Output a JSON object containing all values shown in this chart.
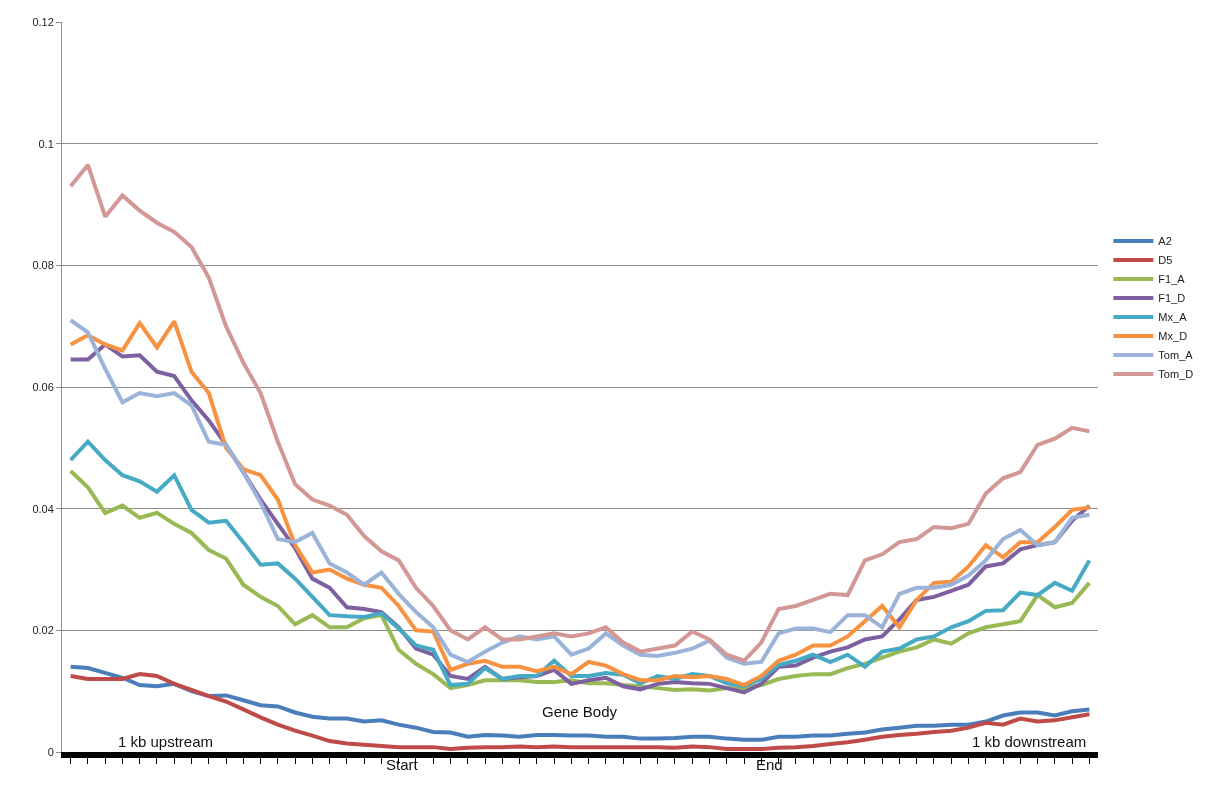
{
  "chart_data": {
    "type": "line",
    "categories": [
      null,
      null,
      null,
      null,
      null,
      null,
      null,
      null,
      null,
      null,
      null,
      null,
      null,
      null,
      null,
      null,
      null,
      null,
      null,
      null,
      null,
      null,
      null,
      null,
      null,
      null,
      null,
      null,
      null,
      null,
      null,
      null,
      null,
      null,
      null,
      null,
      null,
      null,
      null,
      null,
      null,
      null,
      null,
      null,
      null,
      null,
      null,
      null,
      null,
      null,
      null,
      null,
      null,
      null,
      null,
      null,
      null,
      null,
      null,
      null
    ],
    "ylim": [
      0,
      0.12
    ],
    "yticks": [
      0,
      0.02,
      0.04,
      0.06,
      0.08,
      0.1,
      0.12
    ],
    "grid": "y",
    "legend": "right",
    "tick_labels": "y",
    "annotations": [
      "1 kb upstream",
      "Start",
      "Gene Body",
      "End",
      "1 kb downstream"
    ],
    "series": [
      {
        "name": "A2",
        "color": "#4a7ebb",
        "values": [
          0.014,
          0.0138,
          0.013,
          0.0122,
          0.011,
          0.0108,
          0.0112,
          0.01,
          0.0092,
          0.0093,
          0.0085,
          0.0077,
          0.0075,
          0.0065,
          0.0058,
          0.0055,
          0.0055,
          0.005,
          0.0052,
          0.0045,
          0.004,
          0.0033,
          0.0032,
          0.0025,
          0.0028,
          0.0027,
          0.0025,
          0.0028,
          0.0028,
          0.0027,
          0.0027,
          0.0025,
          0.0025,
          0.0022,
          0.0022,
          0.0023,
          0.0025,
          0.0025,
          0.0022,
          0.002,
          0.002,
          0.0025,
          0.0025,
          0.0027,
          0.0027,
          0.003,
          0.0032,
          0.0037,
          0.004,
          0.0043,
          0.0043,
          0.0045,
          0.0045,
          0.005,
          0.006,
          0.0065,
          0.0065,
          0.006,
          0.0067,
          0.007
        ]
      },
      {
        "name": "D5",
        "color": "#be4b48",
        "values": [
          0.0125,
          0.012,
          0.012,
          0.012,
          0.0128,
          0.0125,
          0.0112,
          0.0102,
          0.0092,
          0.0083,
          0.007,
          0.0057,
          0.0045,
          0.0035,
          0.0027,
          0.0018,
          0.0014,
          0.0012,
          0.001,
          0.0008,
          0.0008,
          0.0008,
          0.0005,
          0.0007,
          0.0008,
          0.0008,
          0.0009,
          0.0008,
          0.0009,
          0.0008,
          0.0008,
          0.0008,
          0.0008,
          0.0008,
          0.0008,
          0.0007,
          0.0009,
          0.0008,
          0.0005,
          0.0005,
          0.0005,
          0.0007,
          0.0008,
          0.001,
          0.0013,
          0.0016,
          0.002,
          0.0025,
          0.0028,
          0.003,
          0.0033,
          0.0035,
          0.004,
          0.0048,
          0.0045,
          0.0055,
          0.005,
          0.0052,
          0.0057,
          0.0062
        ]
      },
      {
        "name": "F1_A",
        "color": "#98b954",
        "values": [
          0.0462,
          0.0435,
          0.0393,
          0.0405,
          0.0385,
          0.0393,
          0.0375,
          0.036,
          0.0332,
          0.0318,
          0.0275,
          0.0255,
          0.024,
          0.021,
          0.0225,
          0.0205,
          0.0205,
          0.022,
          0.0225,
          0.0168,
          0.0145,
          0.0128,
          0.0105,
          0.011,
          0.0118,
          0.0118,
          0.0118,
          0.0115,
          0.0115,
          0.0118,
          0.0113,
          0.0113,
          0.011,
          0.0108,
          0.0105,
          0.0102,
          0.0103,
          0.0101,
          0.0105,
          0.0105,
          0.011,
          0.012,
          0.0125,
          0.0128,
          0.0128,
          0.0138,
          0.0145,
          0.0155,
          0.0165,
          0.0172,
          0.0185,
          0.0178,
          0.0195,
          0.0205,
          0.021,
          0.0215,
          0.0258,
          0.0238,
          0.0245,
          0.0278
        ]
      },
      {
        "name": "F1_D",
        "color": "#7d60a0",
        "values": [
          0.0645,
          0.0645,
          0.067,
          0.065,
          0.0652,
          0.0625,
          0.0618,
          0.0578,
          0.0545,
          0.0505,
          0.046,
          0.0415,
          0.0375,
          0.0335,
          0.0285,
          0.027,
          0.0238,
          0.0235,
          0.023,
          0.0205,
          0.017,
          0.016,
          0.0125,
          0.012,
          0.014,
          0.012,
          0.0123,
          0.0125,
          0.0135,
          0.0112,
          0.0118,
          0.0122,
          0.0108,
          0.0103,
          0.0112,
          0.0115,
          0.0113,
          0.0112,
          0.0105,
          0.0098,
          0.0112,
          0.014,
          0.0142,
          0.0155,
          0.0165,
          0.0172,
          0.0185,
          0.019,
          0.0218,
          0.025,
          0.0255,
          0.0265,
          0.0275,
          0.0305,
          0.031,
          0.0333,
          0.034,
          0.0345,
          0.038,
          0.0405
        ]
      },
      {
        "name": "Mx_A",
        "color": "#46aac5",
        "values": [
          0.048,
          0.051,
          0.048,
          0.0455,
          0.0445,
          0.0428,
          0.0455,
          0.0398,
          0.0377,
          0.038,
          0.0345,
          0.0308,
          0.031,
          0.0285,
          0.0255,
          0.0225,
          0.0223,
          0.0222,
          0.0228,
          0.0203,
          0.0175,
          0.0168,
          0.011,
          0.0112,
          0.0138,
          0.012,
          0.0125,
          0.0125,
          0.015,
          0.0125,
          0.0125,
          0.013,
          0.0127,
          0.0113,
          0.0125,
          0.012,
          0.0128,
          0.0125,
          0.0113,
          0.0108,
          0.012,
          0.0143,
          0.015,
          0.016,
          0.0148,
          0.016,
          0.014,
          0.0165,
          0.017,
          0.0185,
          0.019,
          0.0205,
          0.0215,
          0.0232,
          0.0233,
          0.0262,
          0.0258,
          0.0278,
          0.0265,
          0.0315
        ]
      },
      {
        "name": "Mx_D",
        "color": "#f69240",
        "values": [
          0.067,
          0.0685,
          0.067,
          0.066,
          0.0705,
          0.0665,
          0.0708,
          0.0625,
          0.059,
          0.05,
          0.0465,
          0.0455,
          0.0415,
          0.034,
          0.0295,
          0.03,
          0.0285,
          0.0275,
          0.027,
          0.024,
          0.02,
          0.0198,
          0.0135,
          0.0145,
          0.015,
          0.014,
          0.014,
          0.0133,
          0.014,
          0.0128,
          0.0148,
          0.0142,
          0.0128,
          0.0118,
          0.0118,
          0.0125,
          0.0123,
          0.0125,
          0.012,
          0.011,
          0.0125,
          0.015,
          0.016,
          0.0175,
          0.0175,
          0.019,
          0.0215,
          0.024,
          0.0205,
          0.025,
          0.0278,
          0.028,
          0.0305,
          0.034,
          0.032,
          0.0345,
          0.0345,
          0.037,
          0.0398,
          0.0402
        ]
      },
      {
        "name": "Tom_A",
        "color": "#9bb3d8",
        "values": [
          0.071,
          0.069,
          0.063,
          0.0575,
          0.059,
          0.0585,
          0.059,
          0.057,
          0.051,
          0.0505,
          0.046,
          0.041,
          0.035,
          0.0345,
          0.036,
          0.031,
          0.0295,
          0.0275,
          0.0295,
          0.026,
          0.023,
          0.0205,
          0.016,
          0.0148,
          0.0165,
          0.018,
          0.019,
          0.0185,
          0.019,
          0.016,
          0.017,
          0.0195,
          0.0175,
          0.016,
          0.0158,
          0.0163,
          0.017,
          0.0183,
          0.0155,
          0.0145,
          0.0148,
          0.0195,
          0.0203,
          0.0203,
          0.0197,
          0.0225,
          0.0225,
          0.0205,
          0.026,
          0.027,
          0.027,
          0.0275,
          0.029,
          0.0315,
          0.035,
          0.0365,
          0.034,
          0.0345,
          0.0385,
          0.039
        ]
      },
      {
        "name": "Tom_D",
        "color": "#d39896",
        "values": [
          0.093,
          0.0965,
          0.088,
          0.0915,
          0.089,
          0.087,
          0.0855,
          0.083,
          0.078,
          0.07,
          0.064,
          0.059,
          0.051,
          0.044,
          0.0415,
          0.0405,
          0.039,
          0.0355,
          0.033,
          0.0315,
          0.027,
          0.024,
          0.02,
          0.0185,
          0.0205,
          0.0185,
          0.0185,
          0.019,
          0.0195,
          0.019,
          0.0195,
          0.0205,
          0.018,
          0.0165,
          0.017,
          0.0175,
          0.0198,
          0.0185,
          0.016,
          0.015,
          0.018,
          0.0235,
          0.024,
          0.025,
          0.026,
          0.0258,
          0.0315,
          0.0325,
          0.0345,
          0.035,
          0.037,
          0.0368,
          0.0375,
          0.0425,
          0.045,
          0.046,
          0.0505,
          0.0515,
          0.0533,
          0.0527
        ]
      }
    ]
  }
}
